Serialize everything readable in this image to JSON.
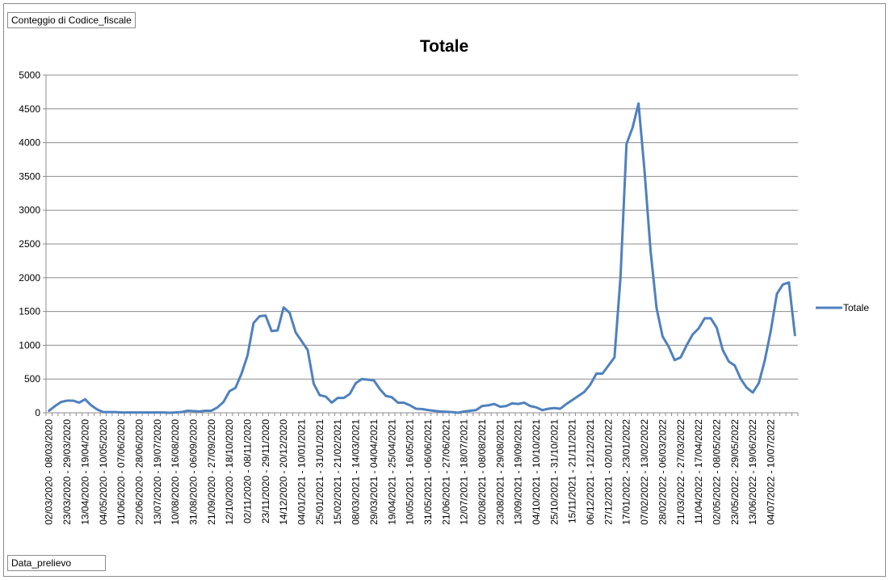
{
  "pivot": {
    "value_field": "Conteggio di Codice_fiscale",
    "row_field": "Data_prelievo"
  },
  "colors": {
    "series": "#4f81bd",
    "grid": "#8c8c8c",
    "axis": "#8c8c8c"
  },
  "chart_data": {
    "type": "line",
    "title": "Totale",
    "xlabel": "",
    "ylabel": "",
    "ylim": [
      0,
      5000
    ],
    "yticks": [
      0,
      500,
      1000,
      1500,
      2000,
      2500,
      3000,
      3500,
      4000,
      4500,
      5000
    ],
    "grid": "horizontal",
    "legend_position": "right",
    "tick_labels": [
      "02/03/2020 - 08/03/2020",
      "23/03/2020 - 29/03/2020",
      "13/04/2020 - 19/04/2020",
      "04/05/2020 - 10/05/2020",
      "01/06/2020 - 07/06/2020",
      "22/06/2020 - 28/06/2020",
      "13/07/2020 - 19/07/2020",
      "10/08/2020 - 16/08/2020",
      "31/08/2020 - 06/09/2020",
      "21/09/2020 - 27/09/2020",
      "12/10/2020 - 18/10/2020",
      "02/11/2020 - 08/11/2020",
      "23/11/2020 - 29/11/2020",
      "14/12/2020 - 20/12/2020",
      "04/01/2021 - 10/01/2021",
      "25/01/2021 - 31/01/2021",
      "15/02/2021 - 21/02/2021",
      "08/03/2021 - 14/03/2021",
      "29/03/2021 - 04/04/2021",
      "19/04/2021 - 25/04/2021",
      "10/05/2021 - 16/05/2021",
      "31/05/2021 - 06/06/2021",
      "21/06/2021 - 27/06/2021",
      "12/07/2021 - 18/07/2021",
      "02/08/2021 - 08/08/2021",
      "23/08/2021 - 29/08/2021",
      "13/09/2021 - 19/09/2021",
      "04/10/2021 - 10/10/2021",
      "25/10/2021 - 31/10/2021",
      "15/11/2021 - 21/11/2021",
      "06/12/2021 - 12/12/2021",
      "27/12/2021 - 02/01/2022",
      "17/01/2022 - 23/01/2022",
      "07/02/2022 - 13/02/2022",
      "28/02/2022 - 06/03/2022",
      "21/03/2022 - 27/03/2022",
      "11/04/2022 - 17/04/2022",
      "02/05/2022 - 08/05/2022",
      "23/05/2022 - 29/05/2022",
      "13/06/2022 - 19/06/2022",
      "04/07/2022 - 10/07/2022"
    ],
    "series": [
      {
        "name": "Totale",
        "values": [
          30,
          100,
          160,
          180,
          180,
          150,
          200,
          110,
          50,
          10,
          10,
          10,
          5,
          5,
          5,
          5,
          5,
          5,
          5,
          5,
          0,
          5,
          10,
          30,
          25,
          20,
          30,
          30,
          80,
          160,
          320,
          370,
          580,
          850,
          1330,
          1430,
          1440,
          1210,
          1220,
          1560,
          1480,
          1190,
          1060,
          930,
          430,
          260,
          240,
          150,
          220,
          220,
          280,
          440,
          500,
          490,
          480,
          350,
          250,
          230,
          150,
          150,
          110,
          60,
          55,
          40,
          30,
          20,
          15,
          10,
          0,
          20,
          30,
          40,
          100,
          110,
          130,
          90,
          100,
          140,
          130,
          150,
          100,
          80,
          40,
          60,
          70,
          60,
          130,
          190,
          250,
          310,
          420,
          580,
          580,
          700,
          820,
          2000,
          3980,
          4220,
          4580,
          3580,
          2400,
          1550,
          1130,
          980,
          780,
          820,
          1000,
          1160,
          1250,
          1400,
          1400,
          1260,
          930,
          760,
          700,
          500,
          370,
          300,
          440,
          780,
          1220,
          1760,
          1900,
          1930,
          1150
        ]
      }
    ]
  }
}
